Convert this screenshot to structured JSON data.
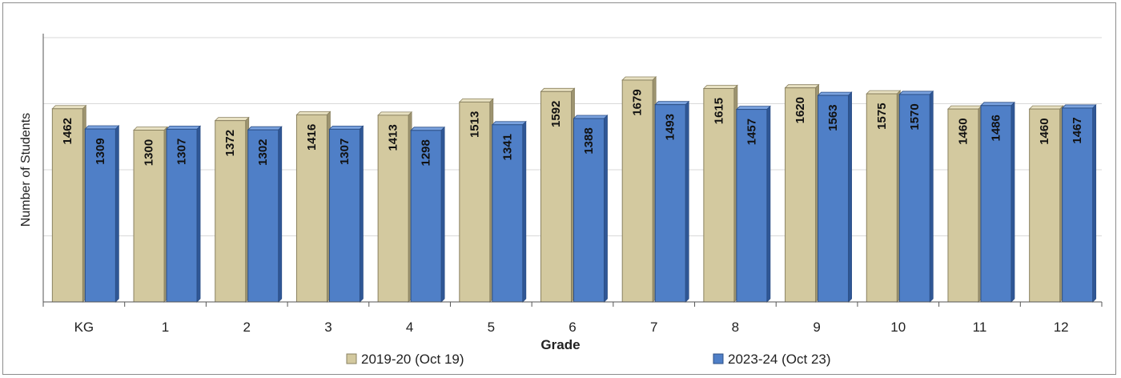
{
  "chart_data": {
    "type": "bar",
    "title": "",
    "xlabel": "Grade",
    "ylabel": "Number of Students",
    "categories": [
      "KG",
      "1",
      "2",
      "3",
      "4",
      "5",
      "6",
      "7",
      "8",
      "9",
      "10",
      "11",
      "12"
    ],
    "series": [
      {
        "name": "2019-20 (Oct 19)",
        "values": [
          1462,
          1300,
          1372,
          1416,
          1413,
          1513,
          1592,
          1679,
          1615,
          1620,
          1575,
          1460,
          1460
        ]
      },
      {
        "name": "2023-24 (Oct 23)",
        "values": [
          1309,
          1307,
          1302,
          1307,
          1298,
          1341,
          1388,
          1493,
          1457,
          1563,
          1570,
          1486,
          1467
        ]
      }
    ],
    "ylim": [
      0,
      2000
    ],
    "grid": true,
    "legend_position": "bottom",
    "colors": [
      "#d3c99f",
      "#4f7fc7"
    ]
  }
}
